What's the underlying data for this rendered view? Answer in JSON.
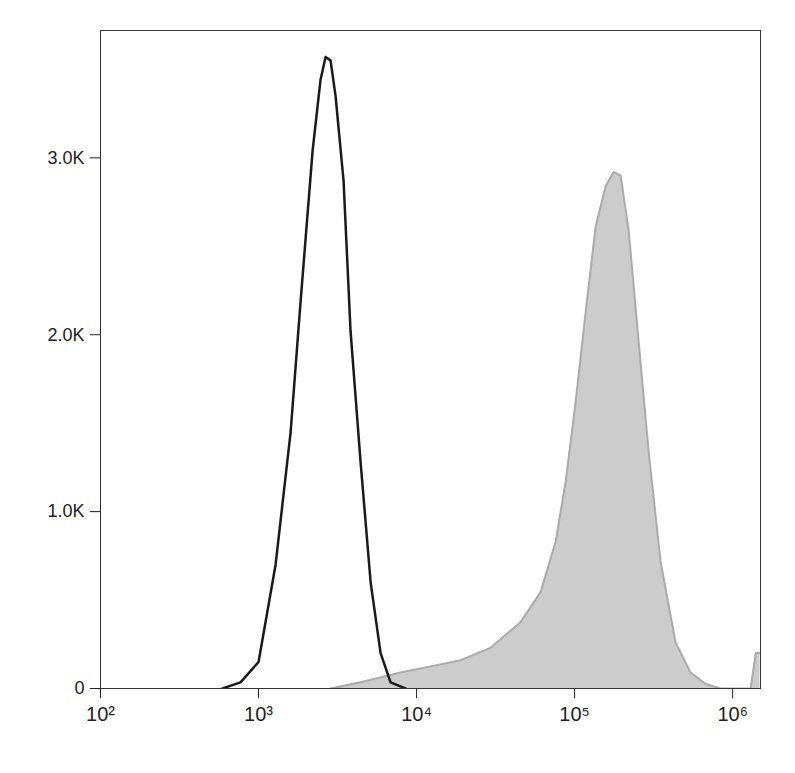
{
  "chart_data": {
    "type": "area",
    "log": "x",
    "grid": false,
    "xlim": [
      100,
      1500000
    ],
    "xticks": [
      {
        "value": 100,
        "label": "10²"
      },
      {
        "value": 1000,
        "label": "10³"
      },
      {
        "value": 10000,
        "label": "10⁴"
      },
      {
        "value": 100000,
        "label": "10⁵"
      },
      {
        "value": 1000000,
        "label": "10⁶"
      }
    ],
    "ylim": [
      0,
      3720
    ],
    "yticks": [
      0,
      {
        "value": 1000,
        "label": "1.0K"
      },
      {
        "value": 2000,
        "label": "2.0K"
      },
      {
        "value": 3000,
        "label": "3.0K"
      }
    ],
    "series": [
      {
        "type": "area",
        "color": "#cccccc",
        "x": [
          2856,
          4423,
          7920,
          12270,
          18970,
          29380,
          45500,
          60930,
          75860,
          87760,
          101500,
          117500,
          135800,
          157100,
          176500,
          195600,
          219700,
          254200,
          294000,
          350000,
          435500,
          542000,
          674000,
          840000,
          1300000,
          1400000,
          1490000
        ],
        "values": [
          0,
          35,
          90,
          125,
          160,
          230,
          375,
          545,
          830,
          1170,
          1620,
          2130,
          2610,
          2840,
          2920,
          2900,
          2590,
          1960,
          1340,
          715,
          260,
          90,
          25,
          0,
          0,
          200,
          200
        ]
      },
      {
        "type": "line",
        "color": "#1a1a1a",
        "x": [
          592,
          769,
          1000,
          1282,
          1596,
          1846,
          2198,
          2466,
          2655,
          2856,
          3071,
          3451,
          3821,
          4423,
          5120,
          5920,
          6845,
          8510
        ],
        "values": [
          0,
          35,
          150,
          700,
          1450,
          2190,
          3040,
          3440,
          3570,
          3550,
          3350,
          2870,
          2020,
          1280,
          600,
          200,
          35,
          0
        ]
      }
    ]
  }
}
